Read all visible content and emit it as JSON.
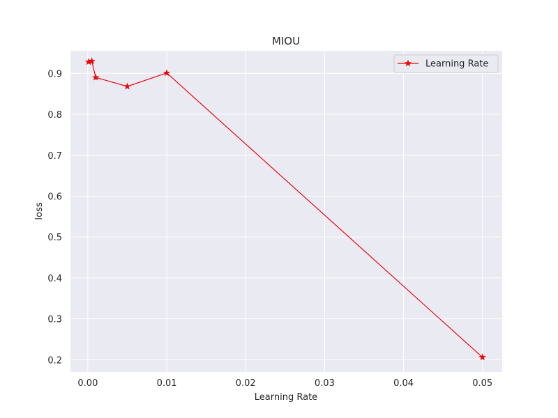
{
  "chart_data": {
    "type": "line",
    "title": "MIOU",
    "xlabel": "Learning Rate",
    "ylabel": "loss",
    "xlim": [
      -0.0022,
      0.0525
    ],
    "ylim": [
      0.17,
      0.955
    ],
    "x_ticks": [
      0.0,
      0.01,
      0.02,
      0.03,
      0.04,
      0.05
    ],
    "x_tick_labels": [
      "0.00",
      "0.01",
      "0.02",
      "0.03",
      "0.04",
      "0.05"
    ],
    "y_ticks": [
      0.2,
      0.3,
      0.4,
      0.5,
      0.6,
      0.7,
      0.8,
      0.9
    ],
    "y_tick_labels": [
      "0.2",
      "0.3",
      "0.4",
      "0.5",
      "0.6",
      "0.7",
      "0.8",
      "0.9"
    ],
    "grid": true,
    "legend_position": "top-right",
    "series": [
      {
        "name": "Learning Rate",
        "color": "#e8080c",
        "marker": "star",
        "x": [
          0.0001,
          0.0005,
          0.001,
          0.005,
          0.01,
          0.05
        ],
        "y": [
          0.928,
          0.93,
          0.89,
          0.868,
          0.901,
          0.206
        ]
      }
    ]
  }
}
